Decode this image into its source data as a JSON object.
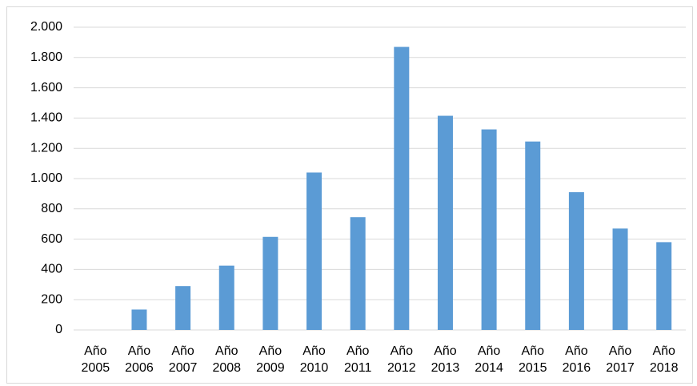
{
  "chart_data": {
    "type": "bar",
    "categories": [
      "Año 2005",
      "Año 2006",
      "Año 2007",
      "Año 2008",
      "Año 2009",
      "Año 2010",
      "Año 2011",
      "Año 2012",
      "Año 2013",
      "Año 2014",
      "Año 2015",
      "Año 2016",
      "Año 2017",
      "Año 2018"
    ],
    "values": [
      0,
      135,
      290,
      425,
      615,
      1040,
      745,
      1870,
      1415,
      1325,
      1245,
      910,
      670,
      580
    ],
    "color": "#5b9bd5",
    "ylim": [
      0,
      2000
    ],
    "yticks": [
      0,
      200,
      400,
      600,
      800,
      {
        "value": 1000,
        "label": "1.000"
      },
      {
        "value": 1200,
        "label": "1.200"
      },
      {
        "value": 1400,
        "label": "1.400"
      },
      {
        "value": 1600,
        "label": "1.600"
      },
      {
        "value": 1800,
        "label": "1.800"
      },
      {
        "value": 2000,
        "label": "2.000"
      }
    ],
    "grid": true
  }
}
